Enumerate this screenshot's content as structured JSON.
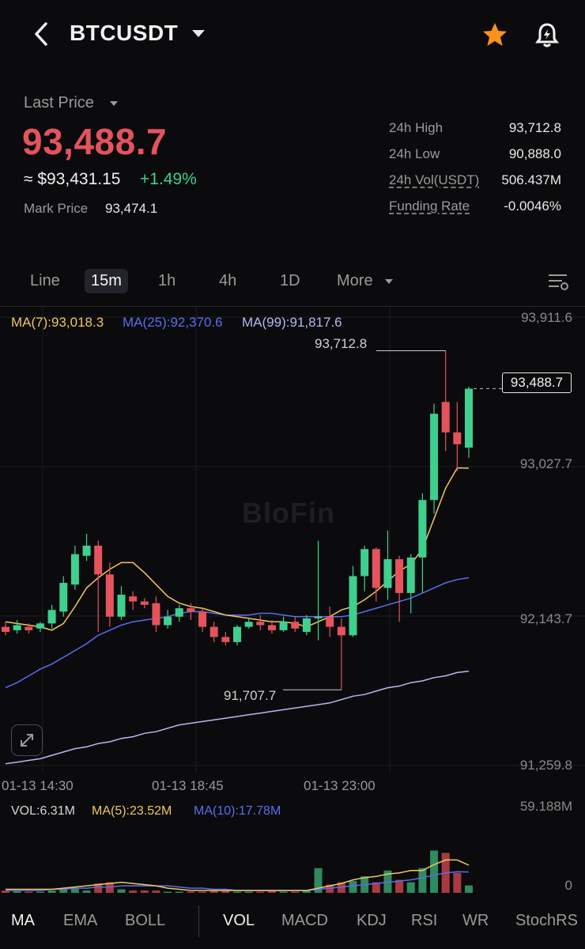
{
  "header": {
    "pair": "BTCUSDT"
  },
  "price": {
    "last_price_label": "Last Price",
    "last_price": "93,488.7",
    "usd_value": "≈ $93,431.15",
    "change": "+1.49%",
    "mark_price_label": "Mark Price",
    "mark_price": "93,474.1"
  },
  "stats": [
    {
      "label": "24h High",
      "value": "93,712.8"
    },
    {
      "label": "24h Low",
      "value": "90,888.0"
    },
    {
      "label": "24h Vol(USDT)",
      "value": "506.437M"
    },
    {
      "label": "Funding Rate",
      "value": "-0.0046%"
    }
  ],
  "timeframes": [
    "Line",
    "15m",
    "1h",
    "4h",
    "1D",
    "More"
  ],
  "active_timeframe": "15m",
  "ma_legend": {
    "ma7": "MA(7):93,018.3",
    "ma25": "MA(25):92,370.6",
    "ma99": "MA(99):91,817.6"
  },
  "watermark": "BloFin",
  "colors": {
    "up": "#3fcf8e",
    "down": "#e5535d",
    "ma7": "#f0c75e",
    "ma25": "#5b6cf0",
    "ma99": "#b4b8f2",
    "bg": "#0b0b0d"
  },
  "chart_data": {
    "type": "candlestick",
    "ylim": [
      91259.8,
      93911.6
    ],
    "y_ticks": [
      "93,911.6",
      "93,027.7",
      "92,143.7",
      "91,259.8"
    ],
    "x_ticks": [
      "01-13 14:30",
      "01-13 18:45",
      "01-13 23:00"
    ],
    "high_label": "93,712.8",
    "low_label": "91,707.7",
    "current_price_label": "93,488.7",
    "candles": [
      {
        "o": 92080,
        "h": 92110,
        "c": 92050,
        "l": 92030
      },
      {
        "o": 92060,
        "h": 92120,
        "c": 92090,
        "l": 92040
      },
      {
        "o": 92080,
        "h": 92100,
        "c": 92060,
        "l": 92040
      },
      {
        "o": 92070,
        "h": 92110,
        "c": 92100,
        "l": 92050
      },
      {
        "o": 92100,
        "h": 92210,
        "c": 92180,
        "l": 92070
      },
      {
        "o": 92170,
        "h": 92380,
        "c": 92340,
        "l": 92140
      },
      {
        "o": 92330,
        "h": 92560,
        "c": 92510,
        "l": 92300
      },
      {
        "o": 92500,
        "h": 92630,
        "c": 92560,
        "l": 92470
      },
      {
        "o": 92560,
        "h": 92590,
        "c": 92390,
        "l": 92050
      },
      {
        "o": 92390,
        "h": 92460,
        "c": 92140,
        "l": 92080
      },
      {
        "o": 92140,
        "h": 92320,
        "c": 92270,
        "l": 92120
      },
      {
        "o": 92260,
        "h": 92290,
        "c": 92230,
        "l": 92180
      },
      {
        "o": 92230,
        "h": 92250,
        "c": 92210,
        "l": 92190
      },
      {
        "o": 92220,
        "h": 92260,
        "c": 92090,
        "l": 92050
      },
      {
        "o": 92090,
        "h": 92180,
        "c": 92140,
        "l": 92070
      },
      {
        "o": 92140,
        "h": 92210,
        "c": 92190,
        "l": 92110
      },
      {
        "o": 92190,
        "h": 92220,
        "c": 92170,
        "l": 92120
      },
      {
        "o": 92170,
        "h": 92190,
        "c": 92080,
        "l": 92050
      },
      {
        "o": 92080,
        "h": 92110,
        "c": 92020,
        "l": 91990
      },
      {
        "o": 92020,
        "h": 92050,
        "c": 91990,
        "l": 91970
      },
      {
        "o": 91990,
        "h": 92090,
        "c": 92080,
        "l": 91970
      },
      {
        "o": 92080,
        "h": 92130,
        "c": 92110,
        "l": 92070
      },
      {
        "o": 92110,
        "h": 92150,
        "c": 92090,
        "l": 92060
      },
      {
        "o": 92090,
        "h": 92120,
        "c": 92060,
        "l": 92040
      },
      {
        "o": 92060,
        "h": 92140,
        "c": 92110,
        "l": 92050
      },
      {
        "o": 92110,
        "h": 92140,
        "c": 92070,
        "l": 92050
      },
      {
        "o": 92050,
        "h": 92150,
        "c": 92130,
        "l": 92030
      },
      {
        "o": 92130,
        "h": 92590,
        "c": 92140,
        "l": 92000
      },
      {
        "o": 92140,
        "h": 92200,
        "c": 92080,
        "l": 92020
      },
      {
        "o": 92080,
        "h": 92130,
        "c": 92030,
        "l": 91707.7
      },
      {
        "o": 92030,
        "h": 92440,
        "c": 92380,
        "l": 92020
      },
      {
        "o": 92380,
        "h": 92560,
        "c": 92540,
        "l": 92290
      },
      {
        "o": 92540,
        "h": 92550,
        "c": 92310,
        "l": 92230
      },
      {
        "o": 92310,
        "h": 92650,
        "c": 92480,
        "l": 92240
      },
      {
        "o": 92480,
        "h": 92500,
        "c": 92280,
        "l": 92110
      },
      {
        "o": 92280,
        "h": 92510,
        "c": 92490,
        "l": 92160
      },
      {
        "o": 92490,
        "h": 92870,
        "c": 92830,
        "l": 92280
      },
      {
        "o": 92830,
        "h": 93400,
        "c": 93340,
        "l": 92750
      },
      {
        "o": 93410,
        "h": 93712.8,
        "c": 93230,
        "l": 93120
      },
      {
        "o": 93230,
        "h": 93410,
        "c": 93160,
        "l": 93000
      },
      {
        "o": 93140,
        "h": 93500,
        "c": 93488.7,
        "l": 93080
      }
    ],
    "ma7": [
      92110,
      92100,
      92090,
      92080,
      92060,
      92100,
      92200,
      92310,
      92370,
      92420,
      92460,
      92460,
      92400,
      92330,
      92260,
      92220,
      92200,
      92190,
      92170,
      92150,
      92140,
      92130,
      92120,
      92110,
      92110,
      92100,
      92080,
      92110,
      92140,
      92180,
      92200,
      92240,
      92290,
      92350,
      92410,
      92450,
      92540,
      92720,
      92900,
      93020,
      93018.3
    ],
    "ma25": [
      91720,
      91750,
      91790,
      91830,
      91860,
      91900,
      91940,
      91980,
      92030,
      92060,
      92090,
      92110,
      92120,
      92130,
      92140,
      92160,
      92170,
      92170,
      92160,
      92150,
      92150,
      92150,
      92160,
      92160,
      92150,
      92140,
      92140,
      92140,
      92140,
      92140,
      92150,
      92170,
      92190,
      92210,
      92230,
      92250,
      92280,
      92310,
      92340,
      92360,
      92370.6
    ],
    "ma99": [
      91270,
      91280,
      91290,
      91300,
      91320,
      91340,
      91360,
      91370,
      91390,
      91400,
      91420,
      91430,
      91450,
      91460,
      91480,
      91500,
      91510,
      91520,
      91530,
      91540,
      91550,
      91560,
      91570,
      91580,
      91590,
      91600,
      91610,
      91620,
      91630,
      91650,
      91670,
      91680,
      91700,
      91720,
      91730,
      91750,
      91760,
      91780,
      91790,
      91810,
      91817.6
    ]
  },
  "volume": {
    "legend_vol": "VOL:6.31M",
    "legend_ma5": "MA(5):23.52M",
    "legend_ma10": "MA(10):17.78M",
    "ylim_label": "59.188M",
    "zero_label": "0",
    "values": [
      2,
      1.5,
      1,
      1,
      2,
      3,
      4,
      2,
      8,
      9,
      3,
      2,
      2,
      2,
      1,
      1,
      1,
      1,
      2,
      2,
      1,
      1,
      1,
      2,
      1,
      1,
      2,
      21,
      7,
      9,
      10,
      14,
      9,
      19,
      11,
      9,
      21,
      36,
      34,
      17,
      6.31
    ],
    "ma5": [
      3,
      3,
      3,
      3,
      3,
      4,
      5,
      6,
      7,
      8,
      9,
      8,
      7,
      6,
      4,
      3,
      2,
      2,
      2,
      2,
      2,
      2,
      2,
      2,
      2,
      2,
      2,
      4,
      6,
      8,
      11,
      13,
      14,
      16,
      17,
      19,
      19,
      24,
      28,
      28,
      23.52
    ],
    "ma10": [
      2,
      2,
      2,
      2,
      3,
      3,
      4,
      4,
      5,
      5,
      6,
      6,
      6,
      6,
      6,
      5,
      4,
      4,
      3,
      3,
      2,
      2,
      2,
      2,
      2,
      2,
      2,
      3,
      4,
      5,
      6,
      7,
      8,
      9,
      10,
      11,
      13,
      15,
      17,
      18,
      17.78
    ]
  },
  "bottom_tabs": {
    "main": [
      "MA",
      "EMA",
      "BOLL"
    ],
    "sub": [
      "VOL",
      "MACD",
      "KDJ",
      "RSI",
      "WR",
      "StochRS"
    ]
  }
}
